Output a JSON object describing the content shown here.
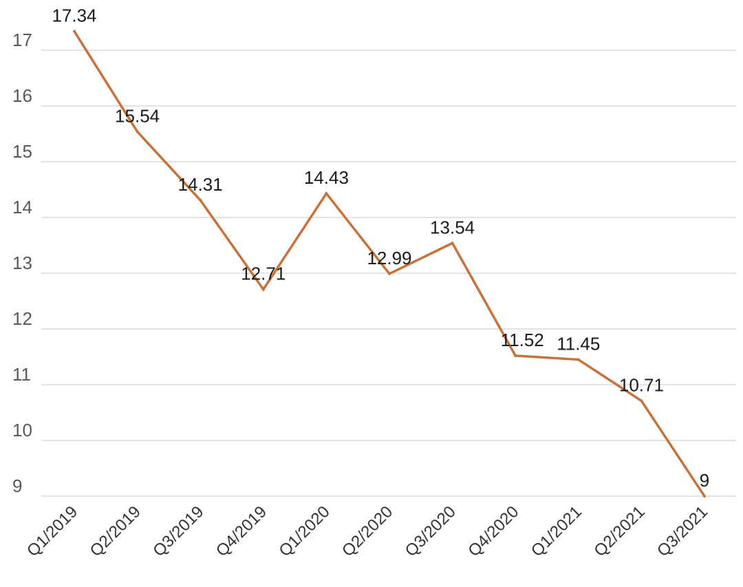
{
  "chart_data": {
    "type": "line",
    "title": "",
    "xlabel": "",
    "ylabel": "",
    "categories": [
      "Q1/2019",
      "Q2/2019",
      "Q3/2019",
      "Q4/2019",
      "Q1/2020",
      "Q2/2020",
      "Q3/2020",
      "Q4/2020",
      "Q1/2021",
      "Q2/2021",
      "Q3/2021"
    ],
    "series": [
      {
        "values": [
          17.34,
          15.54,
          14.31,
          12.71,
          14.43,
          12.99,
          13.54,
          11.52,
          11.45,
          10.71,
          9
        ],
        "color": "#c8723a"
      }
    ],
    "data_labels": [
      "17.34",
      "15.54",
      "14.31",
      "12.71",
      "14.43",
      "12.99",
      "13.54",
      "11.52",
      "11.45",
      "10.71",
      "9"
    ],
    "yticks": [
      "9",
      "10",
      "11",
      "12",
      "13",
      "14",
      "15",
      "16",
      "17"
    ],
    "ylim": [
      9,
      17.34
    ],
    "grid": true,
    "legend": "none"
  }
}
